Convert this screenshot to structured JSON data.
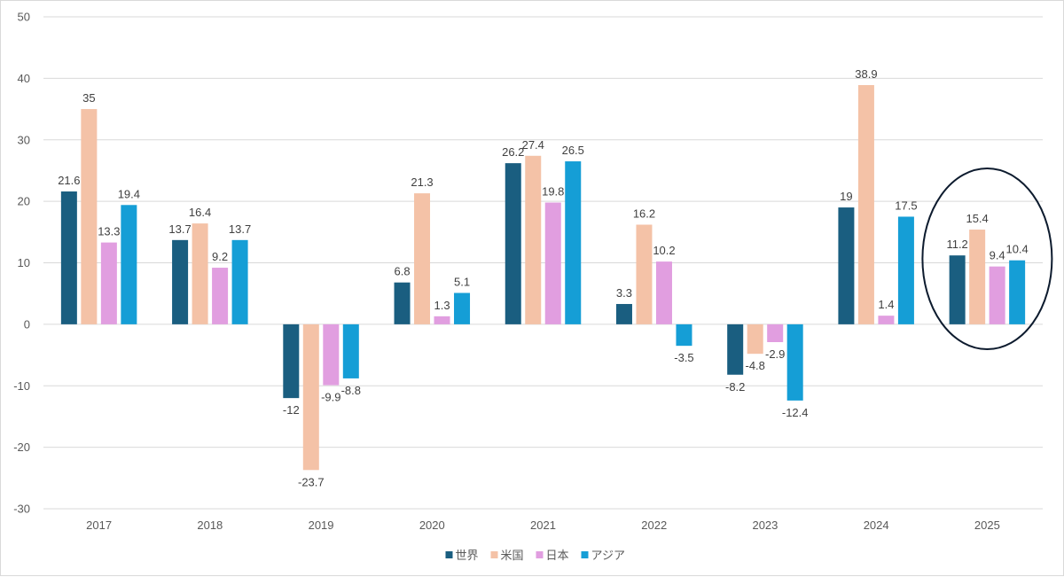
{
  "chart_data": {
    "type": "bar",
    "categories": [
      "2017",
      "2018",
      "2019",
      "2020",
      "2021",
      "2022",
      "2023",
      "2024",
      "2025"
    ],
    "series": [
      {
        "name": "世界",
        "color": "#1a5e80",
        "values": [
          21.6,
          13.7,
          -12,
          6.8,
          26.2,
          3.3,
          -8.2,
          19,
          11.2
        ]
      },
      {
        "name": "米国",
        "color": "#f4c2a7",
        "values": [
          35,
          16.4,
          -23.7,
          21.3,
          27.4,
          16.2,
          -4.8,
          38.9,
          15.4
        ]
      },
      {
        "name": "日本",
        "color": "#e19ee0",
        "values": [
          13.3,
          9.2,
          -9.9,
          1.3,
          19.8,
          10.2,
          -2.9,
          1.4,
          9.4
        ]
      },
      {
        "name": "アジア",
        "color": "#159ed6",
        "values": [
          19.4,
          13.7,
          -8.8,
          5.1,
          26.5,
          -3.5,
          -12.4,
          17.5,
          10.4
        ]
      }
    ],
    "y_ticks": [
      50,
      40,
      30,
      20,
      10,
      0,
      -10,
      -20,
      -30
    ],
    "ylim": [
      -30,
      50
    ],
    "legend_position": "bottom",
    "grid": true,
    "highlight": {
      "category": "2025",
      "shape": "ellipse",
      "color": "#0d1b2e"
    }
  }
}
